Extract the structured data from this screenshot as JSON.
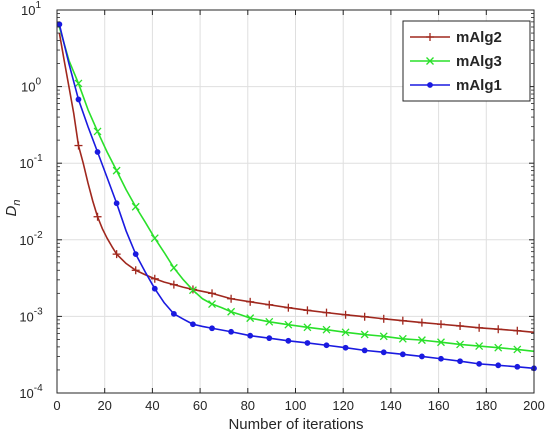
{
  "chart_data": {
    "type": "line",
    "title": "",
    "xlabel": "Number of iterations",
    "ylabel": "D",
    "ylabel_subscript": "n",
    "xlim": [
      0,
      200
    ],
    "ylim": [
      0.0001,
      10
    ],
    "yscale": "log",
    "grid": true,
    "legend_position": "top-right",
    "x_ticks": [
      0,
      20,
      40,
      60,
      80,
      100,
      120,
      140,
      160,
      180,
      200
    ],
    "x_tick_labels": [
      "0",
      "20",
      "40",
      "60",
      "80",
      "100",
      "120",
      "140",
      "160",
      "180",
      "200"
    ],
    "y_ticks": [
      0.0001,
      0.001,
      0.01,
      0.1,
      1,
      10
    ],
    "y_tick_labels": [
      {
        "base": "10",
        "exp": "-4"
      },
      {
        "base": "10",
        "exp": "-3"
      },
      {
        "base": "10",
        "exp": "-2"
      },
      {
        "base": "10",
        "exp": "-1"
      },
      {
        "base": "10",
        "exp": "0"
      },
      {
        "base": "10",
        "exp": "1"
      }
    ],
    "series": [
      {
        "name": "mAlg2",
        "color": "#a0281e",
        "marker": "plus",
        "points": [
          [
            1,
            5.0
          ],
          [
            3,
            2.2
          ],
          [
            5,
            1.0
          ],
          [
            7,
            0.45
          ],
          [
            9,
            0.17
          ],
          [
            11,
            0.1
          ],
          [
            13,
            0.055
          ],
          [
            15,
            0.032
          ],
          [
            17,
            0.02
          ],
          [
            19,
            0.014
          ],
          [
            21,
            0.0105
          ],
          [
            23,
            0.0082
          ],
          [
            25,
            0.0065
          ],
          [
            29,
            0.0049
          ],
          [
            33,
            0.004
          ],
          [
            37,
            0.0035
          ],
          [
            41,
            0.0031
          ],
          [
            45,
            0.0028
          ],
          [
            49,
            0.0026
          ],
          [
            53,
            0.0024
          ],
          [
            57,
            0.00225
          ],
          [
            65,
            0.002
          ],
          [
            73,
            0.0017
          ],
          [
            81,
            0.00155
          ],
          [
            89,
            0.00142
          ],
          [
            97,
            0.0013
          ],
          [
            105,
            0.0012
          ],
          [
            113,
            0.00112
          ],
          [
            121,
            0.00105
          ],
          [
            129,
            0.00099
          ],
          [
            137,
            0.00093
          ],
          [
            145,
            0.00088
          ],
          [
            153,
            0.00083
          ],
          [
            161,
            0.00079
          ],
          [
            169,
            0.00075
          ],
          [
            177,
            0.00071
          ],
          [
            185,
            0.00068
          ],
          [
            193,
            0.00065
          ],
          [
            200,
            0.00062
          ]
        ],
        "marker_x": [
          9,
          17,
          25,
          33,
          41,
          49,
          57,
          65,
          73,
          81,
          89,
          97,
          105,
          113,
          121,
          129,
          137,
          145,
          153,
          161,
          169,
          177,
          185,
          193
        ]
      },
      {
        "name": "mAlg3",
        "color": "#2ae02a",
        "marker": "cross",
        "points": [
          [
            1,
            6.0
          ],
          [
            5,
            2.2
          ],
          [
            9,
            1.1
          ],
          [
            13,
            0.5
          ],
          [
            17,
            0.26
          ],
          [
            21,
            0.14
          ],
          [
            25,
            0.08
          ],
          [
            29,
            0.045
          ],
          [
            33,
            0.027
          ],
          [
            37,
            0.017
          ],
          [
            41,
            0.0105
          ],
          [
            45,
            0.0068
          ],
          [
            49,
            0.0043
          ],
          [
            53,
            0.003
          ],
          [
            57,
            0.0022
          ],
          [
            61,
            0.0017
          ],
          [
            65,
            0.00145
          ],
          [
            69,
            0.0013
          ],
          [
            73,
            0.00115
          ],
          [
            77,
            0.00105
          ],
          [
            81,
            0.00095
          ],
          [
            89,
            0.00085
          ],
          [
            97,
            0.00078
          ],
          [
            105,
            0.00072
          ],
          [
            113,
            0.00067
          ],
          [
            121,
            0.00062
          ],
          [
            129,
            0.00058
          ],
          [
            137,
            0.00055
          ],
          [
            145,
            0.00051
          ],
          [
            153,
            0.00049
          ],
          [
            161,
            0.00046
          ],
          [
            169,
            0.00043
          ],
          [
            177,
            0.00041
          ],
          [
            185,
            0.00039
          ],
          [
            193,
            0.00037
          ],
          [
            200,
            0.00035
          ]
        ],
        "marker_x": [
          9,
          17,
          25,
          33,
          41,
          49,
          57,
          65,
          73,
          81,
          89,
          97,
          105,
          113,
          121,
          129,
          137,
          145,
          153,
          161,
          169,
          177,
          185,
          193
        ]
      },
      {
        "name": "mAlg1",
        "color": "#1a1ae0",
        "marker": "dot",
        "points": [
          [
            1,
            6.5
          ],
          [
            5,
            2.0
          ],
          [
            9,
            0.68
          ],
          [
            13,
            0.3
          ],
          [
            17,
            0.14
          ],
          [
            21,
            0.065
          ],
          [
            25,
            0.03
          ],
          [
            29,
            0.013
          ],
          [
            33,
            0.0065
          ],
          [
            37,
            0.0038
          ],
          [
            41,
            0.0023
          ],
          [
            45,
            0.0015
          ],
          [
            49,
            0.00108
          ],
          [
            53,
            0.00092
          ],
          [
            57,
            0.00079
          ],
          [
            61,
            0.00074
          ],
          [
            65,
            0.0007
          ],
          [
            73,
            0.00063
          ],
          [
            81,
            0.00056
          ],
          [
            89,
            0.00052
          ],
          [
            97,
            0.00048
          ],
          [
            105,
            0.00045
          ],
          [
            113,
            0.00042
          ],
          [
            121,
            0.00039
          ],
          [
            129,
            0.00036
          ],
          [
            137,
            0.00034
          ],
          [
            145,
            0.00032
          ],
          [
            153,
            0.0003
          ],
          [
            161,
            0.00028
          ],
          [
            169,
            0.00026
          ],
          [
            177,
            0.00024
          ],
          [
            185,
            0.00023
          ],
          [
            193,
            0.00022
          ],
          [
            200,
            0.00021
          ]
        ],
        "marker_x": [
          1,
          9,
          17,
          25,
          33,
          41,
          49,
          57,
          65,
          73,
          81,
          89,
          97,
          105,
          113,
          121,
          129,
          137,
          145,
          153,
          161,
          169,
          177,
          185,
          193,
          200
        ]
      }
    ]
  }
}
